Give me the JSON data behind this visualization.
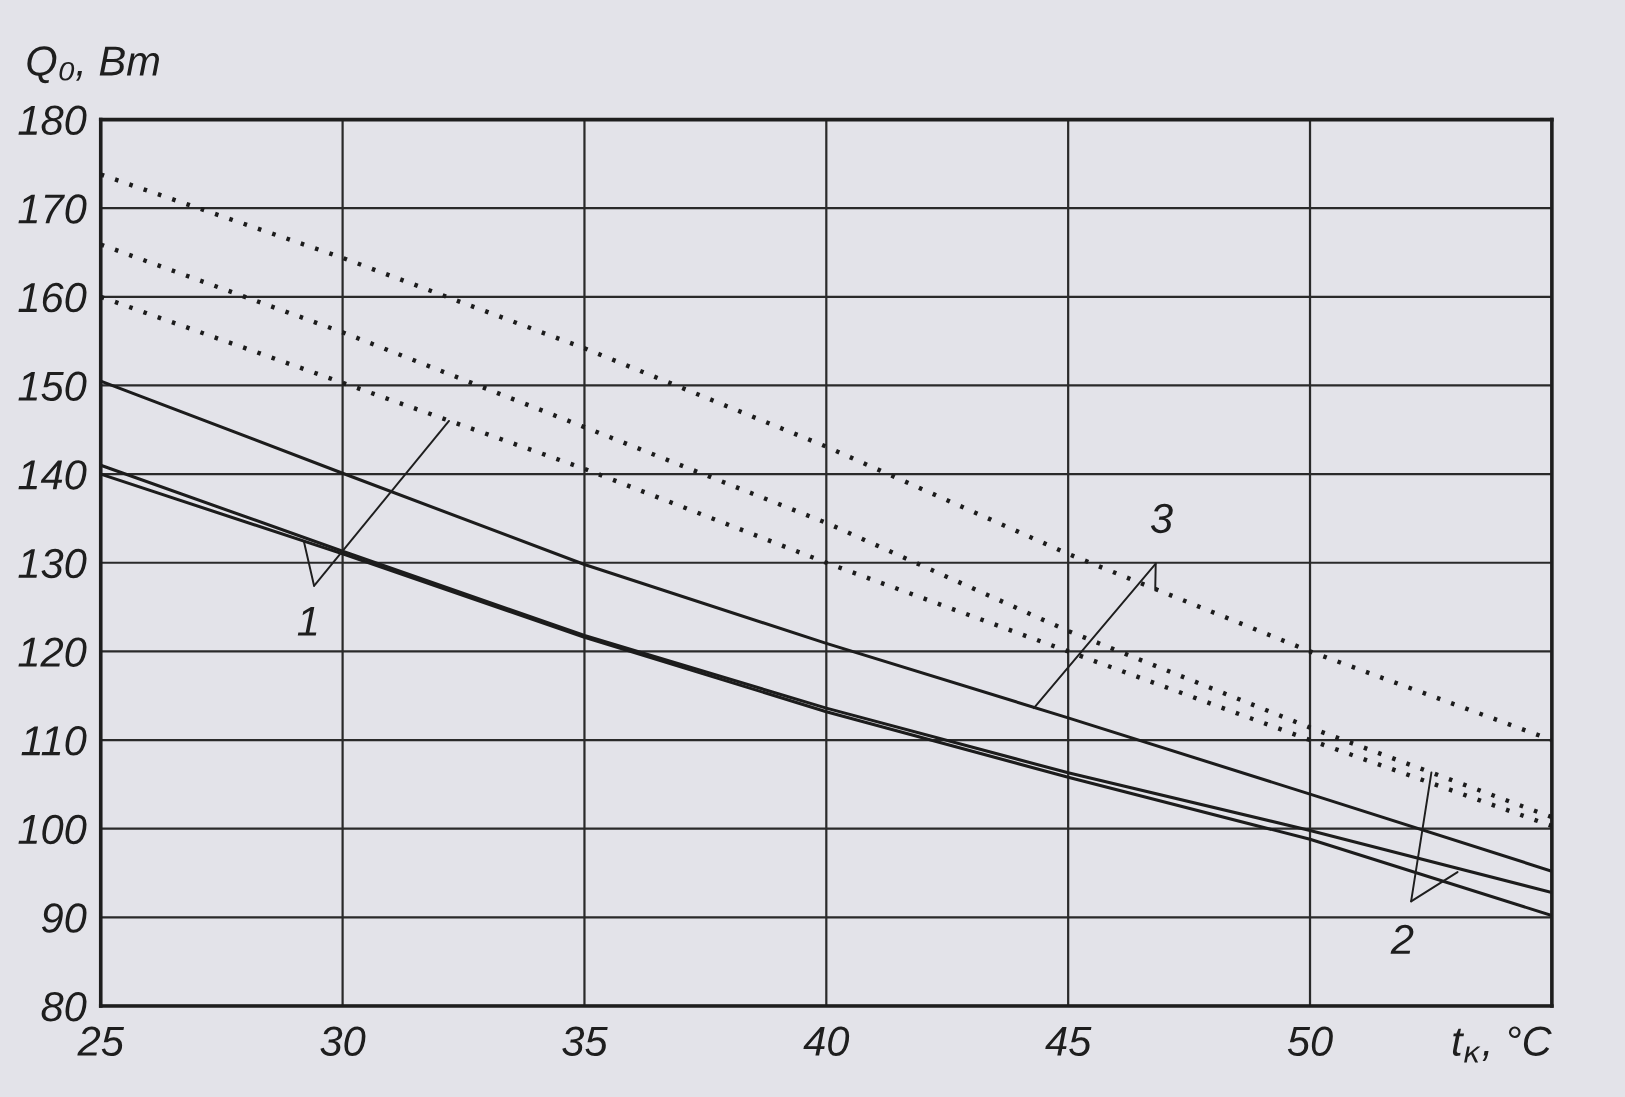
{
  "chart_data": {
    "type": "line",
    "xlabel": "t$_{к}$, °C",
    "ylabel": "Q₀, Вт",
    "x": [
      25,
      30,
      35,
      40,
      45,
      50,
      55
    ],
    "series": [
      {
        "color": "#1c1c1c",
        "line_style": "solid",
        "values": [
          140.0,
          131.0,
          121.6,
          113.2,
          105.8,
          98.8,
          90.2
        ]
      },
      {
        "color": "#1c1c1c",
        "line_style": "solid",
        "values": [
          141.0,
          131.3,
          121.8,
          113.6,
          106.3,
          99.8,
          92.8
        ]
      },
      {
        "color": "#1c1c1c",
        "line_style": "solid",
        "values": [
          150.5,
          140.1,
          129.8,
          120.9,
          112.5,
          103.9,
          95.2
        ]
      },
      {
        "color": "#1c1c1c",
        "line_style": "dotted",
        "values": [
          160.0,
          150.3,
          140.6,
          130.0,
          120.0,
          110.0,
          100.3
        ]
      },
      {
        "color": "#1c1c1c",
        "line_style": "dotted",
        "values": [
          165.9,
          156.0,
          145.3,
          134.5,
          122.3,
          111.4,
          101.3
        ]
      },
      {
        "color": "#1c1c1c",
        "line_style": "dotted",
        "values": [
          173.8,
          164.4,
          154.2,
          143.1,
          131.0,
          120.0,
          110.0
        ]
      }
    ],
    "annotations": [
      {
        "text": "1",
        "x": 29.2,
        "y": 132.4
      },
      {
        "text": "2",
        "x": 53.05,
        "y": 95.1
      },
      {
        "text": "3",
        "x": 46.8,
        "y": 127.0
      }
    ],
    "xlim": [
      25,
      55
    ],
    "ylim": [
      80,
      180
    ],
    "xticks": [
      25,
      30,
      35,
      40,
      45,
      50
    ],
    "yticks": [
      80,
      90,
      100,
      110,
      120,
      130,
      140,
      150,
      160,
      170,
      180
    ],
    "grid": true
  }
}
